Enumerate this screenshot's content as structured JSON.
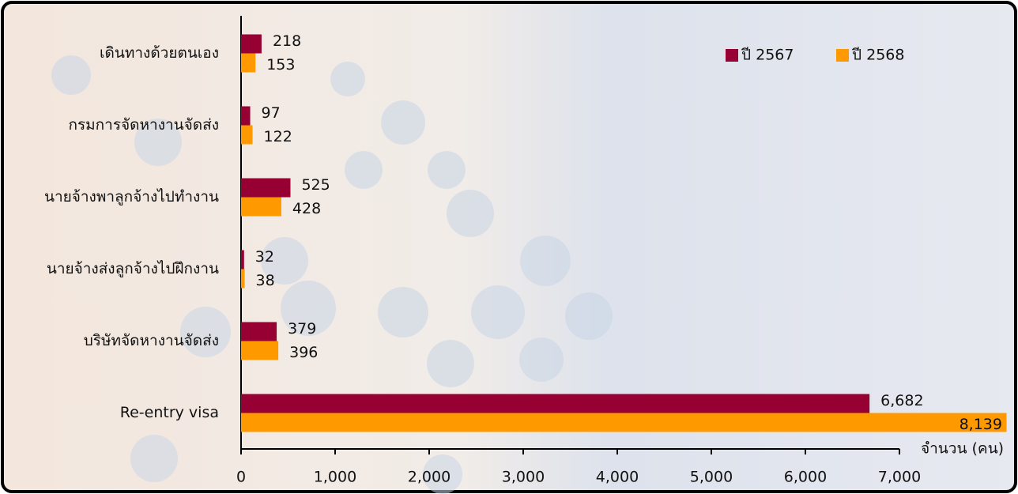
{
  "chart_data": {
    "type": "barh",
    "categories": [
      "เดินทางด้วยตนเอง",
      "กรมการจัดหางานจัดส่ง",
      "นายจ้างพาลูกจ้างไปทำงาน",
      "นายจ้างส่งลูกจ้างไปฝึกงาน",
      "บริษัทจัดหางานจัดส่ง",
      "Re-entry visa"
    ],
    "series": [
      {
        "name": "ปี 2567",
        "color": "#960032",
        "values": [
          218,
          97,
          525,
          32,
          379,
          6682
        ],
        "value_labels": [
          "218",
          "97",
          "525",
          "32",
          "379",
          "6,682"
        ]
      },
      {
        "name": "ปี 2568",
        "color": "#ff9900",
        "values": [
          153,
          122,
          428,
          38,
          396,
          8139
        ],
        "value_labels": [
          "153",
          "122",
          "428",
          "38",
          "396",
          "8,139"
        ]
      }
    ],
    "xlabel": "จำนวน (คน)",
    "xlim": [
      0,
      7000
    ],
    "xticks": [
      0,
      {
        "value": 1000,
        "label": "1,000"
      },
      {
        "value": 2000,
        "label": "2,000"
      },
      {
        "value": 3000,
        "label": "3,000"
      },
      {
        "value": 4000,
        "label": "4,000"
      },
      {
        "value": 5000,
        "label": "5,000"
      },
      {
        "value": 6000,
        "label": "6,000"
      },
      {
        "value": 7000,
        "label": "7,000"
      }
    ],
    "legend": "top-right"
  }
}
